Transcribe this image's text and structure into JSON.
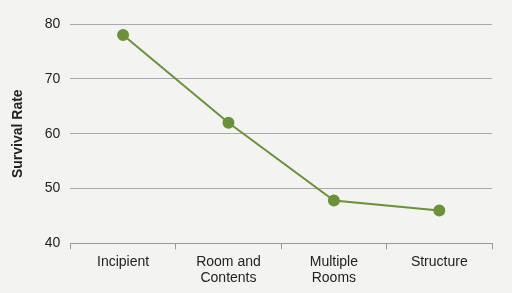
{
  "chart_data": {
    "type": "line",
    "y_label": "Survival Rate",
    "categories": [
      "Incipient",
      "Room and Contents",
      "Multiple Rooms",
      "Structure"
    ],
    "values": [
      78,
      62,
      47.8,
      46
    ],
    "color": "#6b9139",
    "marker": "circle",
    "ylim": [
      40,
      80
    ],
    "yticks": [
      40,
      50,
      60,
      70,
      80
    ],
    "grid": true
  }
}
